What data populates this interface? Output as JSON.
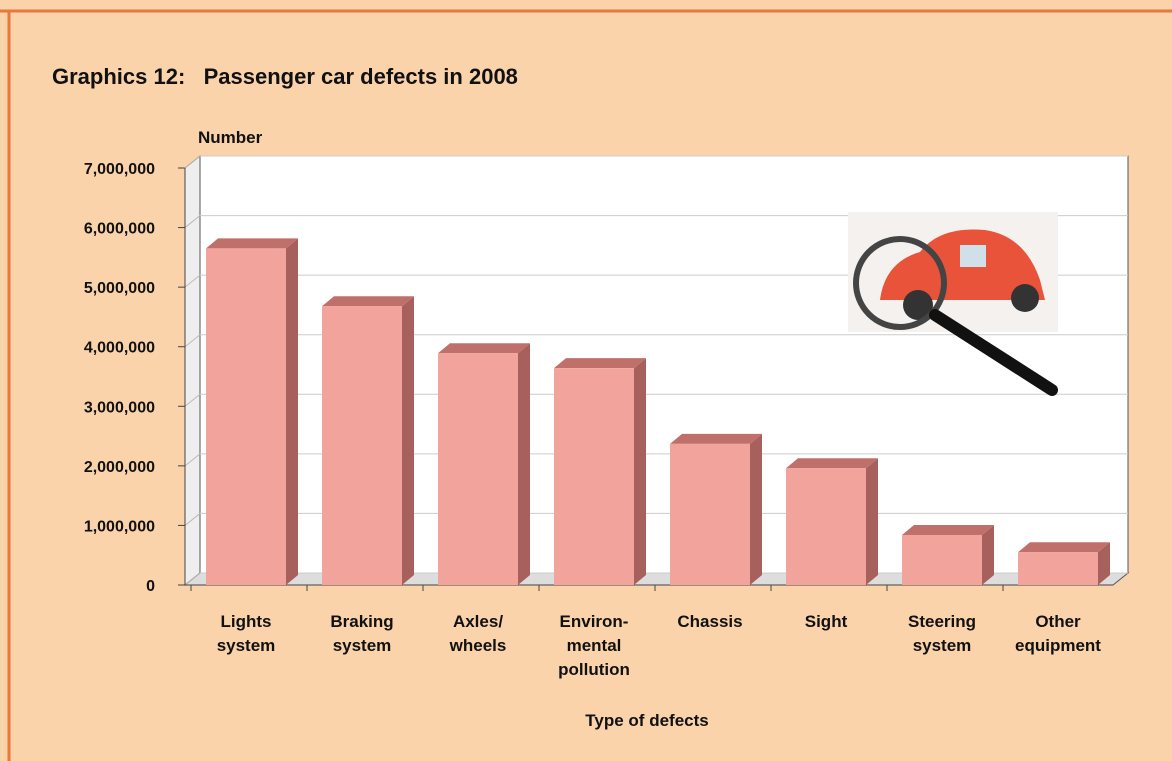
{
  "chart_data": {
    "type": "bar3d",
    "title": "Graphics 12:   Passenger car defects in 2008",
    "y_label": "Number",
    "x_label": "Type of defects",
    "categories": [
      [
        "Lights",
        "system"
      ],
      [
        "Braking",
        "system"
      ],
      [
        "Axles/",
        "wheels"
      ],
      [
        "Environ-",
        "mental",
        "pollution"
      ],
      [
        "Chassis"
      ],
      [
        "Sight"
      ],
      [
        "Steering",
        "system"
      ],
      [
        "Other",
        "equipment"
      ]
    ],
    "values": [
      5650000,
      4680000,
      3890000,
      3640000,
      2370000,
      1960000,
      840000,
      550000
    ],
    "color": "#f2a39c",
    "ylim": [
      0,
      7000000
    ],
    "yticks": [
      0,
      {
        "value": 1000000,
        "label": "1,000,000"
      },
      {
        "value": 2000000,
        "label": "2,000,000"
      },
      {
        "value": 3000000,
        "label": "3,000,000"
      },
      {
        "value": 4000000,
        "label": "4,000,000"
      },
      {
        "value": 5000000,
        "label": "5,000,000"
      },
      {
        "value": 6000000,
        "label": "6,000,000"
      },
      {
        "value": 7000000,
        "label": "7,000,000"
      }
    ],
    "grid": true
  }
}
